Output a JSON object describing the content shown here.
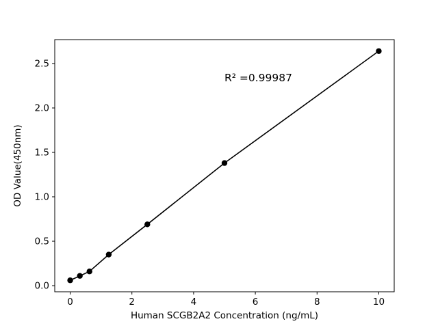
{
  "chart_data": {
    "type": "scatter",
    "title": "",
    "xlabel": "Human SCGB2A2 Concentration (ng/mL)",
    "ylabel": "OD Value(450nm)",
    "annotation": "R² =0.99987",
    "x": [
      0,
      0.313,
      0.625,
      1.25,
      2.5,
      5,
      10
    ],
    "y": [
      0.06,
      0.11,
      0.16,
      0.35,
      0.69,
      1.38,
      2.64
    ],
    "line_through_points": true,
    "xticks": [
      0,
      2,
      4,
      6,
      8,
      10
    ],
    "xtick_labels": [
      "0",
      "2",
      "4",
      "6",
      "8",
      "10"
    ],
    "yticks": [
      0.0,
      0.5,
      1.0,
      1.5,
      2.0,
      2.5
    ],
    "ytick_labels": [
      "0.0",
      "0.5",
      "1.0",
      "1.5",
      "2.0",
      "2.5"
    ],
    "xlim": [
      -0.5,
      10.5
    ],
    "ylim": [
      -0.069,
      2.769
    ],
    "grid": false,
    "legend": null,
    "marker_color": "#000000",
    "line_color": "#000000",
    "axis_color": "#000000",
    "background": "#ffffff",
    "annotation_pos": {
      "x": 5.0,
      "y": 2.3
    }
  }
}
